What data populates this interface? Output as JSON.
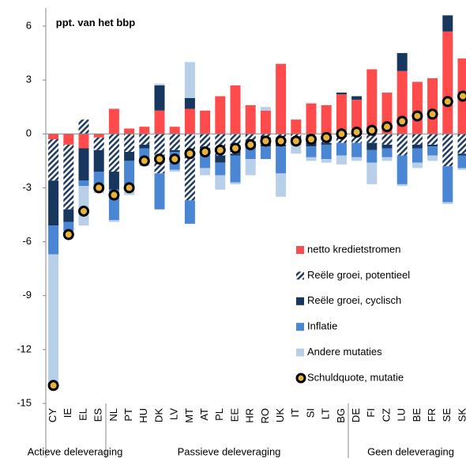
{
  "chart_data": {
    "type": "stacked_bar",
    "annotation": "ppt. van het bbp",
    "categories": [
      "CY",
      "IE",
      "EL",
      "ES",
      "NL",
      "PT",
      "HU",
      "DK",
      "LV",
      "MT",
      "AT",
      "PL",
      "EE",
      "HR",
      "RO",
      "UK",
      "IT",
      "SI",
      "LT",
      "BG",
      "DE",
      "FI",
      "CZ",
      "LU",
      "BE",
      "FR",
      "SE",
      "SK"
    ],
    "group_labels": [
      "Actieve deleveraging",
      "Passieve deleveraging",
      "Geen deleveraging"
    ],
    "series": [
      {
        "name": "netto kredietstromen",
        "color": "#ff4b4b",
        "values": [
          -0.3,
          -0.6,
          -0.8,
          -0.2,
          1.4,
          0.3,
          0.4,
          1.3,
          0.4,
          1.4,
          1.3,
          2.1,
          2.7,
          1.6,
          1.3,
          3.9,
          0.8,
          1.7,
          1.6,
          2.2,
          1.9,
          3.6,
          2.3,
          3.5,
          2.9,
          3.1,
          5.7,
          4.2
        ]
      },
      {
        "name": "Reële groei, potentieel",
        "color": "#1f3b63",
        "pattern": "hatch",
        "values": [
          -2.3,
          -3.6,
          0.8,
          -0.7,
          -2.1,
          -1.0,
          -0.6,
          -2.2,
          -0.9,
          -3.7,
          -0.8,
          -1.2,
          -1.1,
          -0.7,
          -0.6,
          -0.6,
          -0.2,
          -0.4,
          -0.5,
          -0.5,
          -0.5,
          -0.5,
          -0.6,
          -1.2,
          -0.6,
          -0.6,
          -1.8,
          -1.1
        ]
      },
      {
        "name": "Reële groei, cyclisch",
        "color": "#17375e",
        "values": [
          -2.5,
          -0.7,
          -1.8,
          -1.2,
          -1.0,
          -0.5,
          -0.2,
          1.4,
          -0.1,
          0.6,
          -0.1,
          -0.4,
          -0.1,
          -0.1,
          -0.1,
          -0.1,
          -0.1,
          -0.3,
          -0.1,
          0.1,
          0.2,
          -0.4,
          -0.2,
          1.0,
          -0.2,
          -0.1,
          0.9,
          -0.1
        ]
      },
      {
        "name": "Inflatie",
        "color": "#4a86d4",
        "values": [
          -1.6,
          -0.5,
          -0.3,
          -0.8,
          -1.7,
          -1.4,
          -0.7,
          -2.0,
          -1.0,
          -1.3,
          -1.0,
          -0.7,
          -1.5,
          -0.6,
          -0.7,
          -1.5,
          -0.3,
          -0.6,
          -0.8,
          -0.7,
          -0.8,
          -0.7,
          -0.5,
          -1.6,
          -0.8,
          -0.5,
          -2.0,
          -0.7
        ]
      },
      {
        "name": "Andere mutaties",
        "color": "#b8cfe9",
        "values": [
          -7.5,
          -0.2,
          -2.2,
          -0.4,
          -0.1,
          -0.5,
          -0.3,
          0.1,
          -0.1,
          2.0,
          -0.4,
          -0.8,
          -0.1,
          -0.9,
          0.2,
          -1.3,
          -0.5,
          -0.2,
          -0.2,
          -0.5,
          -0.2,
          -1.2,
          -0.2,
          -0.1,
          -0.3,
          -0.3,
          -0.1,
          -0.1
        ]
      },
      {
        "name": "Schuldquote, mutatie",
        "color": "#e8b33a",
        "kind": "dot",
        "values": [
          -14.0,
          -5.6,
          -4.3,
          -3.0,
          -3.4,
          -3.0,
          -1.5,
          -1.4,
          -1.4,
          -1.1,
          -1.0,
          -0.9,
          -0.8,
          -0.6,
          -0.4,
          -0.4,
          -0.4,
          -0.3,
          -0.2,
          0.0,
          0.1,
          0.2,
          0.4,
          0.7,
          1.0,
          1.1,
          1.8,
          2.1
        ]
      }
    ],
    "ylim": [
      -15,
      7
    ],
    "yticks": [
      6,
      3,
      0,
      -3,
      -6,
      -9,
      -12,
      -15
    ]
  }
}
